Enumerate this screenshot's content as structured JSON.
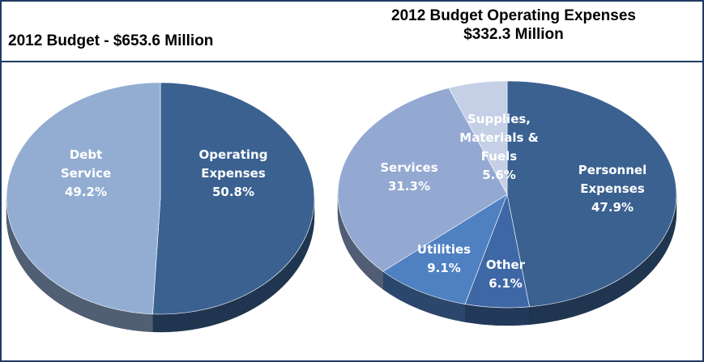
{
  "header": {
    "left_title": "2012 Budget - $653.6 Million",
    "right_title_line1": "2012 Budget Operating Expenses",
    "right_title_line2": "$332.3 Million"
  },
  "chart_data": [
    {
      "type": "pie",
      "title": "2012 Budget - $653.6 Million",
      "slices": [
        {
          "lines": [
            "Operating",
            "Expenses"
          ],
          "pct_label": "50.8%",
          "value": 50.8,
          "color": "#3a6190",
          "label_color": "#ffffff"
        },
        {
          "lines": [
            "Debt",
            "Service"
          ],
          "pct_label": "49.2%",
          "value": 49.2,
          "color": "#93add2",
          "label_color": "#ffffff"
        }
      ]
    },
    {
      "type": "pie",
      "title": "2012 Budget Operating Expenses $332.3 Million",
      "slices": [
        {
          "lines": [
            "Personnel",
            "Expenses"
          ],
          "pct_label": "47.9%",
          "value": 47.9,
          "color": "#3a6190",
          "label_color": "#ffffff"
        },
        {
          "lines": [
            "Other"
          ],
          "pct_label": "6.1%",
          "value": 6.1,
          "color": "#3e68a5",
          "label_color": "#ffffff"
        },
        {
          "lines": [
            "Utilities"
          ],
          "pct_label": "9.1%",
          "value": 9.1,
          "color": "#4f81c2",
          "label_color": "#ffffff"
        },
        {
          "lines": [
            "Services"
          ],
          "pct_label": "31.3%",
          "value": 31.3,
          "color": "#93a9d2",
          "label_color": "#ffffff"
        },
        {
          "lines": [
            "Supplies,",
            "Materials &",
            "Fuels"
          ],
          "pct_label": "5.6%",
          "value": 5.6,
          "color": "#c5d0e6",
          "label_color": "#ffffff"
        }
      ]
    }
  ]
}
